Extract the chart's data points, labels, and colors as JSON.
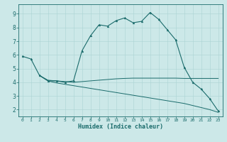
{
  "xlabel": "Humidex (Indice chaleur)",
  "bg_color": "#cce8e8",
  "line_color": "#1a6b6b",
  "grid_color": "#aad4d4",
  "xlim": [
    -0.5,
    23.5
  ],
  "ylim": [
    1.5,
    9.7
  ],
  "xticks": [
    0,
    1,
    2,
    3,
    4,
    5,
    6,
    7,
    8,
    9,
    10,
    11,
    12,
    13,
    14,
    15,
    16,
    17,
    18,
    19,
    20,
    21,
    22,
    23
  ],
  "yticks": [
    2,
    3,
    4,
    5,
    6,
    7,
    8,
    9
  ],
  "line1_x": [
    0,
    1,
    2,
    3,
    4,
    5,
    6,
    7,
    8,
    9,
    10,
    11,
    12,
    13,
    14,
    15,
    16,
    17,
    18,
    19,
    20,
    21,
    22,
    23
  ],
  "line1_y": [
    5.9,
    5.7,
    4.5,
    4.1,
    4.1,
    4.0,
    4.1,
    6.3,
    7.4,
    8.2,
    8.1,
    8.5,
    8.7,
    8.35,
    8.45,
    9.1,
    8.6,
    7.85,
    7.1,
    5.1,
    4.0,
    3.5,
    2.8,
    1.9
  ],
  "line2_x": [
    2,
    3,
    4,
    5,
    6,
    7,
    8,
    9,
    10,
    11,
    12,
    13,
    14,
    15,
    16,
    17,
    18,
    19,
    20,
    21,
    22,
    23
  ],
  "line2_y": [
    4.5,
    4.15,
    4.1,
    4.05,
    4.0,
    4.05,
    4.1,
    4.15,
    4.2,
    4.25,
    4.28,
    4.3,
    4.3,
    4.3,
    4.3,
    4.3,
    4.3,
    4.28,
    4.28,
    4.28,
    4.28,
    4.28
  ],
  "line3_x": [
    2,
    3,
    4,
    5,
    6,
    7,
    8,
    9,
    10,
    11,
    12,
    13,
    14,
    15,
    16,
    17,
    18,
    19,
    20,
    21,
    22,
    23
  ],
  "line3_y": [
    4.5,
    4.1,
    3.95,
    3.85,
    3.75,
    3.65,
    3.55,
    3.45,
    3.35,
    3.25,
    3.15,
    3.05,
    2.95,
    2.85,
    2.75,
    2.65,
    2.55,
    2.45,
    2.3,
    2.15,
    2.0,
    1.8
  ]
}
